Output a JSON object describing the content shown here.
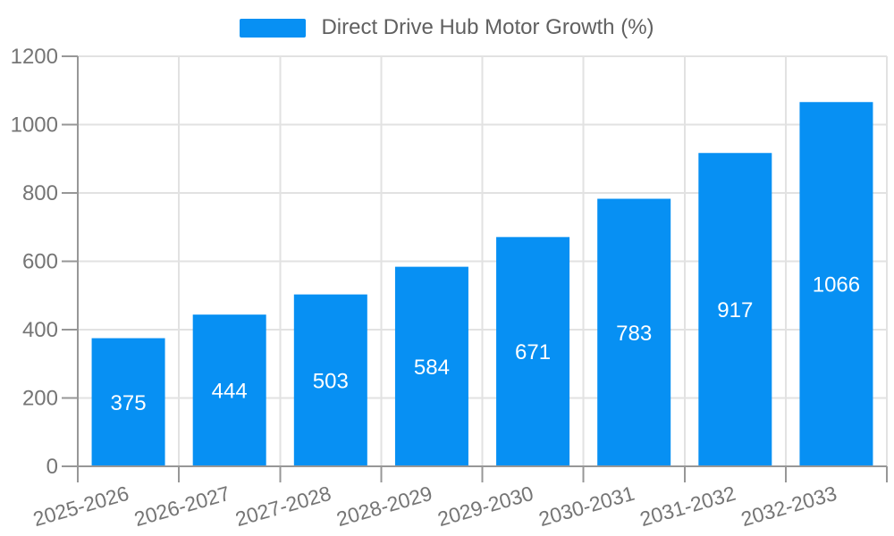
{
  "chart_data": {
    "type": "bar",
    "title": "Direct Drive Hub Motor Growth (%)",
    "legend_label": "Direct Drive Hub Motor Growth (%)",
    "legend_position": "top-center",
    "categories": [
      "2025-2026",
      "2026-2027",
      "2027-2028",
      "2028-2029",
      "2029-2030",
      "2030-2031",
      "2031-2032",
      "2032-2033"
    ],
    "values": [
      375,
      444,
      503,
      584,
      671,
      783,
      917,
      1066
    ],
    "xlabel": "",
    "ylabel": "",
    "ylim": [
      0,
      1200
    ],
    "yticks": [
      0,
      200,
      400,
      600,
      800,
      1000,
      1200
    ],
    "grid": "both",
    "value_labels": "inside-center",
    "colors": {
      "bar": "#0790F3",
      "value_label": "#ffffff",
      "axis_text": "#757575",
      "legend_text": "#606060",
      "grid_line": "#e2e2e2",
      "axis_line": "#979797"
    }
  }
}
